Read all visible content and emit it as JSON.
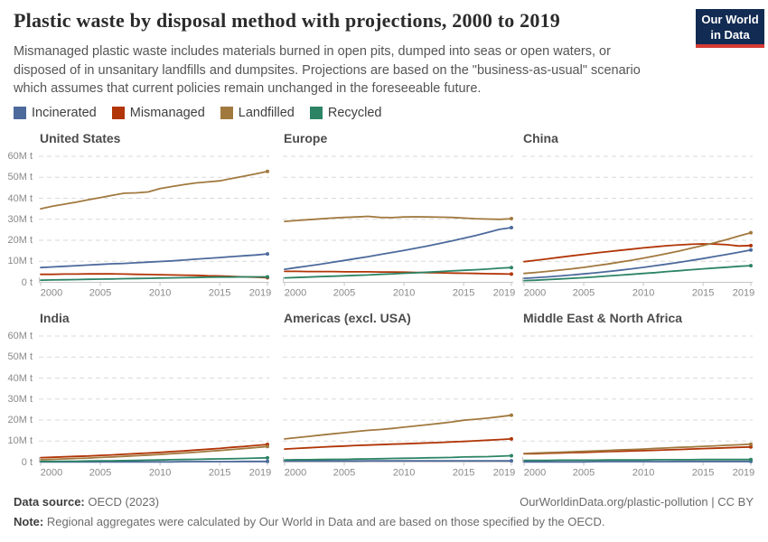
{
  "header": {
    "title": "Plastic waste by disposal method with projections, 2000 to 2019",
    "logo": {
      "line1": "Our World",
      "line2": "in Data"
    }
  },
  "subtitle": "Mismanaged plastic waste includes materials burned in open pits, dumped into seas or open waters, or disposed of in unsanitary landfills and dumpsites. Projections are based on the \"business-as-usual\" scenario which assumes that current policies remain unchanged in the foreseeable future.",
  "legend": [
    {
      "label": "Incinerated",
      "color": "#4C6A9C"
    },
    {
      "label": "Mismanaged",
      "color": "#B13507"
    },
    {
      "label": "Landfilled",
      "color": "#A1793F"
    },
    {
      "label": "Recycled",
      "color": "#2C8465"
    }
  ],
  "chart_data": {
    "type": "line",
    "title": "Plastic waste by disposal method with projections, 2000 to 2019",
    "unit": "million tonnes per year",
    "grid": "dashed horizontal gridlines",
    "legend_position": "top-left",
    "ylim": [
      0,
      60
    ],
    "y_tick_labels_top_down": [
      "60M t",
      "50M t",
      "40M t",
      "30M t",
      "20M t",
      "10M t",
      "0 t"
    ],
    "x_ticks": [
      2000,
      2005,
      2010,
      2015,
      2019
    ],
    "x": [
      2000,
      2001,
      2002,
      2003,
      2004,
      2005,
      2006,
      2007,
      2008,
      2009,
      2010,
      2011,
      2012,
      2013,
      2014,
      2015,
      2016,
      2017,
      2018,
      2019
    ],
    "series_order": [
      "Incinerated",
      "Mismanaged",
      "Landfilled",
      "Recycled"
    ],
    "panels": [
      {
        "title": "United States",
        "series": {
          "Incinerated": [
            7.0,
            7.3,
            7.6,
            7.9,
            8.2,
            8.5,
            8.8,
            9.0,
            9.3,
            9.6,
            9.9,
            10.2,
            10.6,
            11.0,
            11.4,
            11.8,
            12.2,
            12.6,
            13.0,
            13.5
          ],
          "Mismanaged": [
            3.8,
            3.8,
            3.9,
            3.9,
            4.0,
            4.0,
            4.0,
            3.9,
            3.8,
            3.7,
            3.6,
            3.5,
            3.4,
            3.3,
            3.1,
            3.0,
            2.8,
            2.6,
            2.4,
            2.2
          ],
          "Landfilled": [
            35.0,
            36.2,
            37.2,
            38.2,
            39.3,
            40.3,
            41.4,
            42.4,
            42.6,
            43.0,
            44.6,
            45.6,
            46.5,
            47.3,
            47.8,
            48.3,
            49.4,
            50.5,
            51.6,
            52.8
          ],
          "Recycled": [
            1.0,
            1.1,
            1.2,
            1.3,
            1.4,
            1.5,
            1.6,
            1.7,
            1.8,
            1.9,
            2.0,
            2.1,
            2.2,
            2.3,
            2.4,
            2.5,
            2.5,
            2.6,
            2.6,
            2.6
          ]
        }
      },
      {
        "title": "Europe",
        "series": {
          "Incinerated": [
            6.2,
            7.0,
            7.8,
            8.6,
            9.5,
            10.4,
            11.3,
            12.2,
            13.2,
            14.2,
            15.2,
            16.2,
            17.3,
            18.5,
            19.7,
            21.0,
            22.3,
            23.7,
            25.2,
            26.0
          ],
          "Mismanaged": [
            5.2,
            5.2,
            5.1,
            5.1,
            5.1,
            5.0,
            5.0,
            5.0,
            4.9,
            4.9,
            4.8,
            4.7,
            4.6,
            4.5,
            4.4,
            4.3,
            4.2,
            4.1,
            4.0,
            3.9
          ],
          "Landfilled": [
            29.0,
            29.4,
            29.8,
            30.2,
            30.6,
            30.9,
            31.1,
            31.4,
            30.9,
            30.8,
            31.1,
            31.2,
            31.1,
            31.0,
            30.9,
            30.6,
            30.3,
            30.1,
            30.0,
            30.3
          ],
          "Recycled": [
            2.1,
            2.3,
            2.5,
            2.7,
            2.9,
            3.1,
            3.3,
            3.5,
            3.8,
            4.0,
            4.3,
            4.5,
            4.8,
            5.1,
            5.4,
            5.7,
            6.0,
            6.3,
            6.7,
            7.0
          ]
        }
      },
      {
        "title": "China",
        "series": {
          "Incinerated": [
            1.9,
            2.2,
            2.6,
            3.0,
            3.5,
            4.0,
            4.5,
            5.1,
            5.7,
            6.4,
            7.1,
            7.9,
            8.7,
            9.5,
            10.4,
            11.3,
            12.3,
            13.3,
            14.3,
            15.4
          ],
          "Mismanaged": [
            9.8,
            10.5,
            11.2,
            11.9,
            12.6,
            13.3,
            14.0,
            14.6,
            15.2,
            15.8,
            16.4,
            16.9,
            17.4,
            17.8,
            18.1,
            18.3,
            18.2,
            17.9,
            17.3,
            17.5
          ],
          "Landfilled": [
            4.2,
            4.7,
            5.2,
            5.8,
            6.4,
            7.1,
            7.9,
            8.7,
            9.6,
            10.5,
            11.5,
            12.6,
            13.7,
            14.9,
            16.2,
            17.5,
            18.9,
            20.4,
            22.0,
            23.6
          ],
          "Recycled": [
            0.8,
            1.0,
            1.3,
            1.6,
            1.9,
            2.2,
            2.6,
            3.0,
            3.4,
            3.8,
            4.2,
            4.6,
            5.1,
            5.5,
            6.0,
            6.4,
            6.8,
            7.2,
            7.6,
            7.9
          ]
        }
      },
      {
        "title": "India",
        "series": {
          "Incinerated": [
            0.1,
            0.1,
            0.1,
            0.1,
            0.1,
            0.1,
            0.1,
            0.1,
            0.1,
            0.1,
            0.1,
            0.1,
            0.2,
            0.2,
            0.2,
            0.2,
            0.2,
            0.3,
            0.3,
            0.3
          ],
          "Mismanaged": [
            2.1,
            2.3,
            2.5,
            2.7,
            2.9,
            3.2,
            3.4,
            3.7,
            4.0,
            4.3,
            4.6,
            5.0,
            5.3,
            5.7,
            6.1,
            6.5,
            7.0,
            7.4,
            7.9,
            8.4
          ],
          "Landfilled": [
            1.1,
            1.3,
            1.5,
            1.7,
            1.9,
            2.2,
            2.4,
            2.7,
            3.0,
            3.3,
            3.6,
            4.0,
            4.3,
            4.7,
            5.1,
            5.5,
            6.0,
            6.4,
            6.9,
            7.4
          ],
          "Recycled": [
            0.3,
            0.3,
            0.4,
            0.4,
            0.5,
            0.6,
            0.6,
            0.7,
            0.8,
            0.9,
            1.0,
            1.1,
            1.2,
            1.3,
            1.4,
            1.5,
            1.6,
            1.7,
            1.9,
            2.0
          ]
        }
      },
      {
        "title": "Americas (excl. USA)",
        "series": {
          "Incinerated": [
            0.5,
            0.5,
            0.5,
            0.5,
            0.5,
            0.5,
            0.5,
            0.6,
            0.6,
            0.6,
            0.6,
            0.6,
            0.6,
            0.6,
            0.6,
            0.6,
            0.6,
            0.6,
            0.6,
            0.6
          ],
          "Mismanaged": [
            6.2,
            6.5,
            6.8,
            7.1,
            7.4,
            7.6,
            7.9,
            8.1,
            8.3,
            8.5,
            8.7,
            8.9,
            9.1,
            9.3,
            9.6,
            9.8,
            10.1,
            10.4,
            10.7,
            11.0
          ],
          "Landfilled": [
            11.0,
            11.6,
            12.2,
            12.8,
            13.4,
            14.0,
            14.6,
            15.1,
            15.5,
            16.0,
            16.6,
            17.2,
            17.8,
            18.4,
            19.1,
            19.9,
            20.4,
            20.9,
            21.6,
            22.3
          ],
          "Recycled": [
            1.0,
            1.1,
            1.1,
            1.2,
            1.3,
            1.3,
            1.4,
            1.5,
            1.6,
            1.7,
            1.8,
            1.9,
            2.0,
            2.1,
            2.2,
            2.4,
            2.5,
            2.6,
            2.8,
            3.0
          ]
        }
      },
      {
        "title": "Middle East & North Africa",
        "series": {
          "Incinerated": [
            0.1,
            0.1,
            0.1,
            0.1,
            0.1,
            0.1,
            0.2,
            0.2,
            0.2,
            0.2,
            0.2,
            0.2,
            0.2,
            0.3,
            0.3,
            0.3,
            0.3,
            0.3,
            0.3,
            0.3
          ],
          "Mismanaged": [
            3.9,
            4.0,
            4.2,
            4.3,
            4.5,
            4.6,
            4.8,
            5.0,
            5.1,
            5.3,
            5.4,
            5.6,
            5.8,
            6.0,
            6.2,
            6.4,
            6.6,
            6.8,
            7.0,
            7.2
          ],
          "Landfilled": [
            4.1,
            4.3,
            4.5,
            4.7,
            4.9,
            5.1,
            5.3,
            5.5,
            5.8,
            6.0,
            6.2,
            6.5,
            6.7,
            7.0,
            7.2,
            7.5,
            7.7,
            8.0,
            8.2,
            8.5
          ],
          "Recycled": [
            0.8,
            0.8,
            0.8,
            0.9,
            0.9,
            0.9,
            0.9,
            1.0,
            1.0,
            1.0,
            1.0,
            1.1,
            1.1,
            1.1,
            1.1,
            1.2,
            1.2,
            1.2,
            1.2,
            1.2
          ]
        }
      }
    ]
  },
  "footer": {
    "source_label": "Data source:",
    "source_value": " OECD (2023)",
    "link": "OurWorldinData.org/plastic-pollution | CC BY",
    "note_label": "Note:",
    "note_value": " Regional aggregates were calculated by Our World in Data and are based on those specified by the OECD."
  }
}
